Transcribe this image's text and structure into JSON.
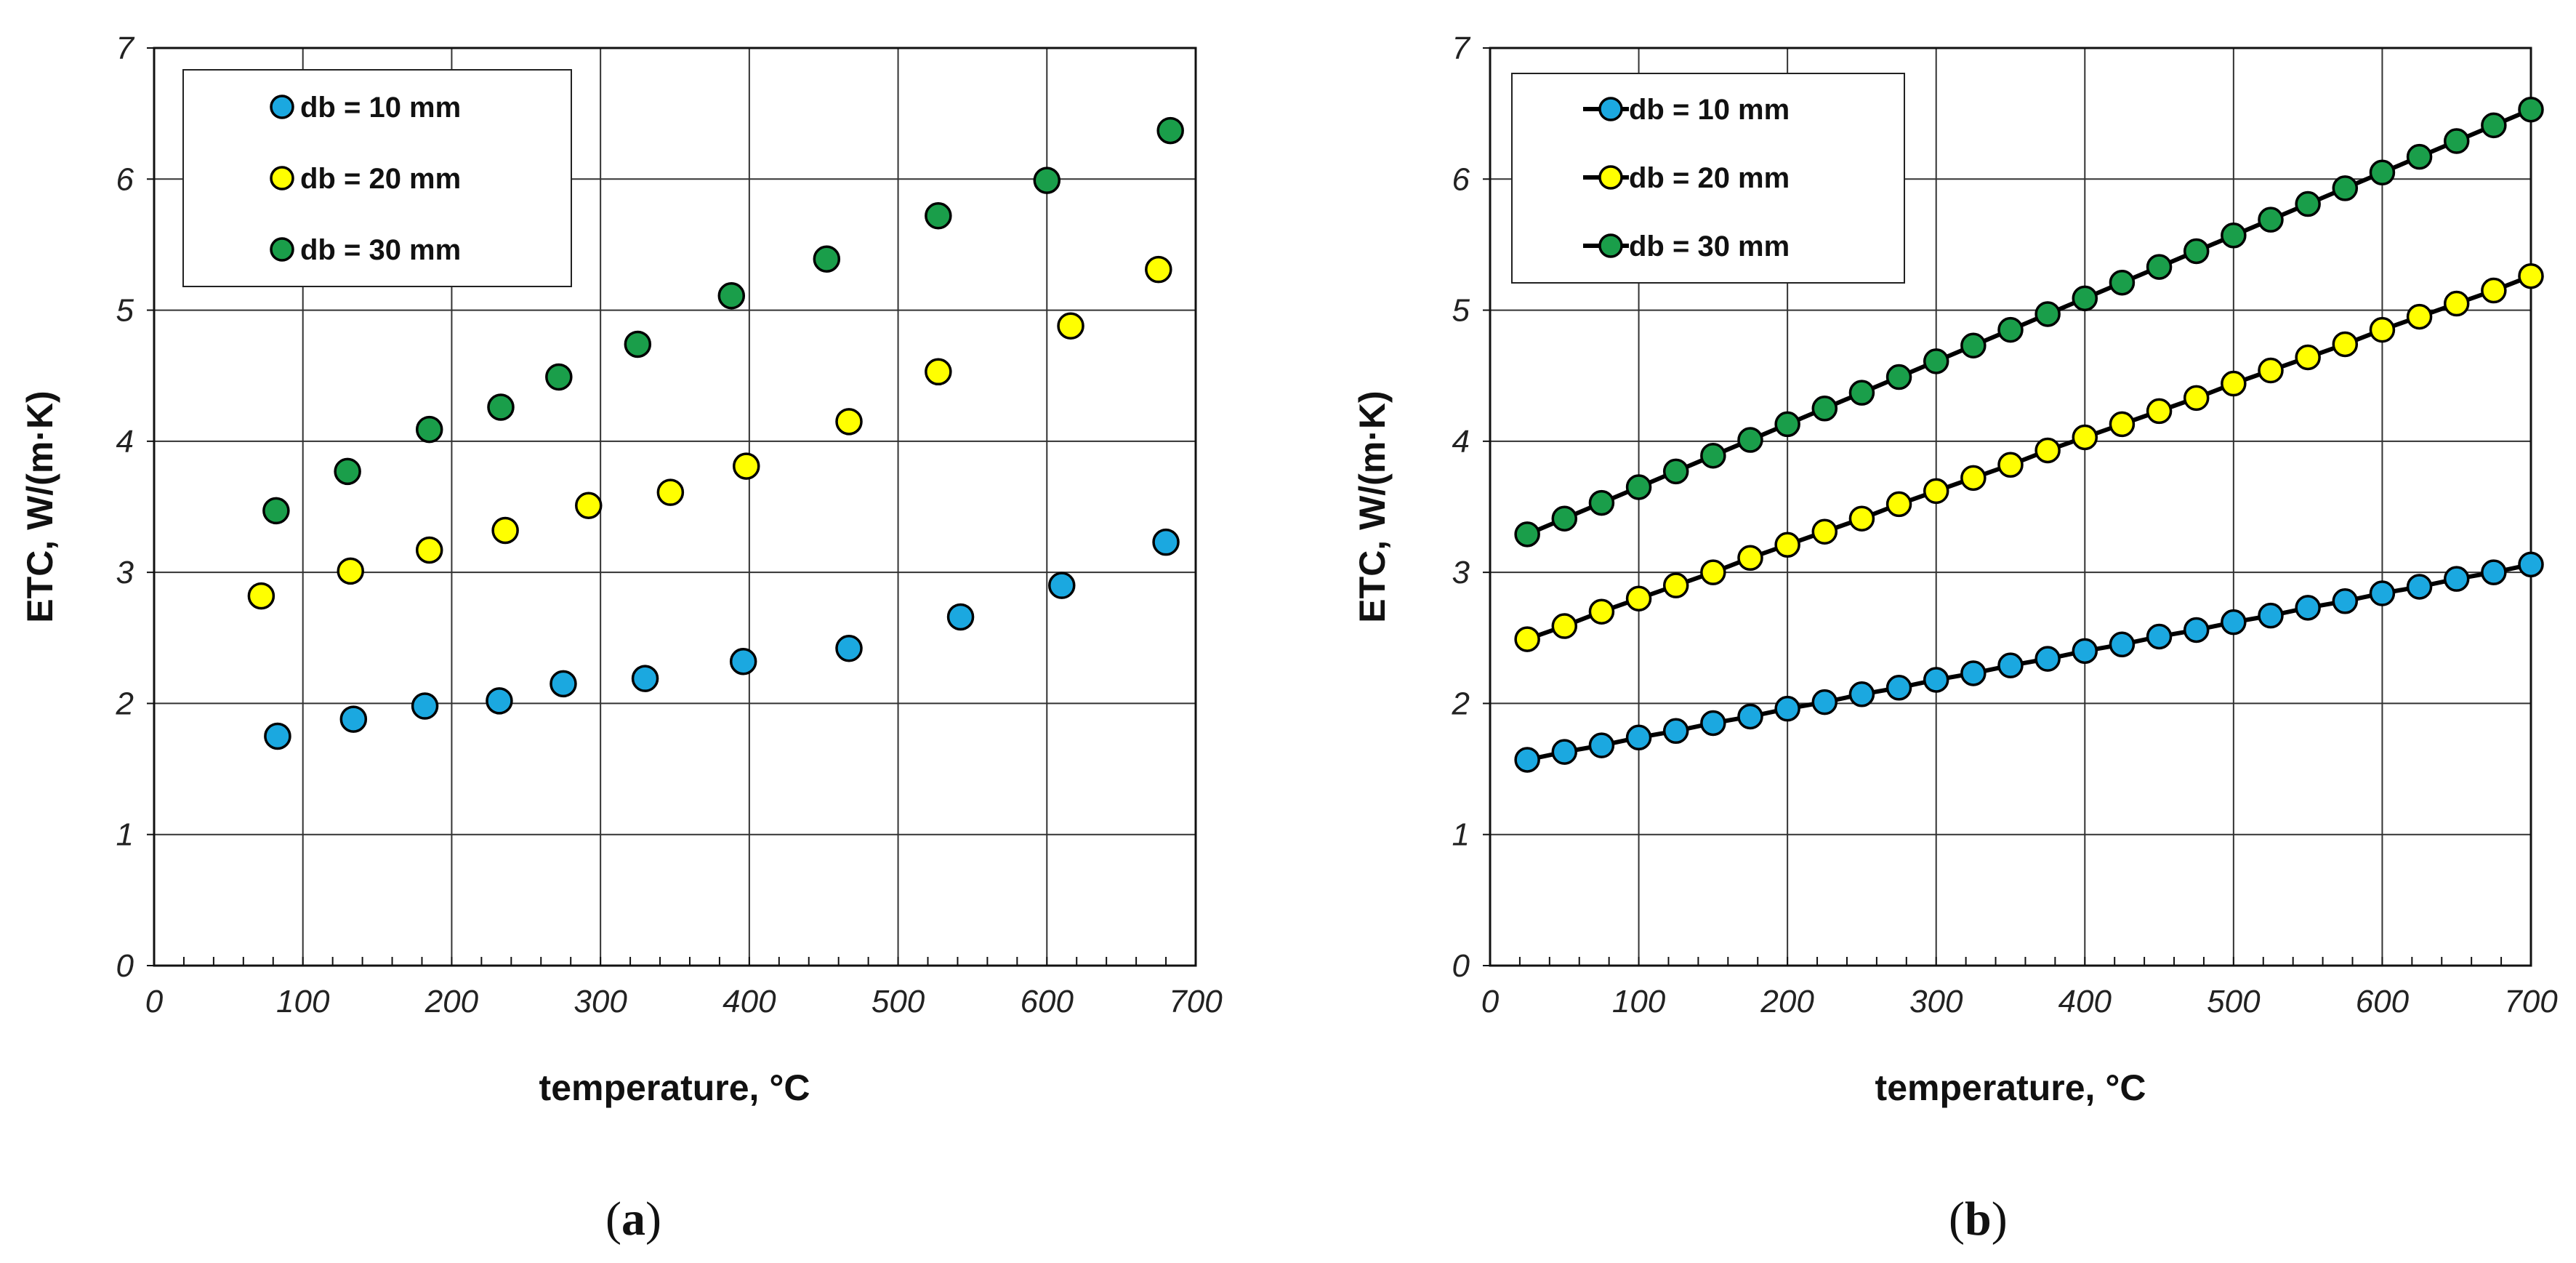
{
  "chart_data": [
    {
      "type": "scatter",
      "panel_label": "(a)",
      "panel_letter": "a",
      "xlabel": "temperature, °C",
      "ylabel": "ETC,   W/(m·K)",
      "xlim": [
        0,
        700
      ],
      "ylim": [
        0,
        7
      ],
      "x_ticks": [
        "0",
        "100",
        "200",
        "300",
        "400",
        "500",
        "600",
        "700"
      ],
      "y_ticks": [
        "0",
        "1",
        "2",
        "3",
        "4",
        "5",
        "6",
        "7"
      ],
      "grid": true,
      "legend_position": "top-left",
      "series": [
        {
          "name": "db = 10 mm",
          "color": "#1ba8e0",
          "x": [
            83,
            134,
            182,
            232,
            275,
            330,
            396,
            467,
            542,
            610,
            680
          ],
          "y": [
            1.75,
            1.88,
            1.98,
            2.02,
            2.15,
            2.19,
            2.32,
            2.42,
            2.66,
            2.9,
            3.23
          ]
        },
        {
          "name": "db = 20 mm",
          "color": "#ffff00",
          "x": [
            72,
            132,
            185,
            236,
            292,
            347,
            398,
            467,
            527,
            616,
            675
          ],
          "y": [
            2.82,
            3.01,
            3.17,
            3.32,
            3.51,
            3.61,
            3.81,
            4.15,
            4.53,
            4.88,
            5.31
          ]
        },
        {
          "name": "db = 30 mm",
          "color": "#1a9e4a",
          "x": [
            82,
            130,
            185,
            233,
            272,
            325,
            388,
            452,
            527,
            600,
            683
          ],
          "y": [
            3.47,
            3.77,
            4.09,
            4.26,
            4.49,
            4.74,
            5.11,
            5.39,
            5.72,
            5.99,
            6.37
          ]
        }
      ]
    },
    {
      "type": "line",
      "panel_label": "(b)",
      "panel_letter": "b",
      "xlabel": "temperature, °C",
      "ylabel": "ETC,   W/(m·K)",
      "xlim": [
        0,
        700
      ],
      "ylim": [
        0,
        7
      ],
      "x_ticks": [
        "0",
        "100",
        "200",
        "300",
        "400",
        "500",
        "600",
        "700"
      ],
      "y_ticks": [
        "0",
        "1",
        "2",
        "3",
        "4",
        "5",
        "6",
        "7"
      ],
      "grid": true,
      "legend_position": "top-left",
      "series": [
        {
          "name": "db = 10 mm",
          "color": "#1ba8e0",
          "x": [
            25,
            50,
            75,
            100,
            125,
            150,
            175,
            200,
            225,
            250,
            275,
            300,
            325,
            350,
            375,
            400,
            425,
            450,
            475,
            500,
            525,
            550,
            575,
            600,
            625,
            650,
            675,
            700
          ],
          "y": [
            1.57,
            1.63,
            1.68,
            1.74,
            1.79,
            1.85,
            1.9,
            1.96,
            2.01,
            2.07,
            2.12,
            2.18,
            2.23,
            2.29,
            2.34,
            2.4,
            2.45,
            2.51,
            2.56,
            2.62,
            2.67,
            2.73,
            2.78,
            2.84,
            2.89,
            2.95,
            3.0,
            3.06
          ]
        },
        {
          "name": "db = 20 mm",
          "color": "#ffff00",
          "x": [
            25,
            50,
            75,
            100,
            125,
            150,
            175,
            200,
            225,
            250,
            275,
            300,
            325,
            350,
            375,
            400,
            425,
            450,
            475,
            500,
            525,
            550,
            575,
            600,
            625,
            650,
            675,
            700
          ],
          "y": [
            2.49,
            2.59,
            2.7,
            2.8,
            2.9,
            3.0,
            3.11,
            3.21,
            3.31,
            3.41,
            3.52,
            3.62,
            3.72,
            3.82,
            3.93,
            4.03,
            4.13,
            4.23,
            4.33,
            4.44,
            4.54,
            4.64,
            4.74,
            4.85,
            4.95,
            5.05,
            5.15,
            5.26
          ]
        },
        {
          "name": "db = 30 mm",
          "color": "#1a9e4a",
          "x": [
            25,
            50,
            75,
            100,
            125,
            150,
            175,
            200,
            225,
            250,
            275,
            300,
            325,
            350,
            375,
            400,
            425,
            450,
            475,
            500,
            525,
            550,
            575,
            600,
            625,
            650,
            675,
            700
          ],
          "y": [
            3.29,
            3.41,
            3.53,
            3.65,
            3.77,
            3.89,
            4.01,
            4.13,
            4.25,
            4.37,
            4.49,
            4.61,
            4.73,
            4.85,
            4.97,
            5.09,
            5.21,
            5.33,
            5.45,
            5.57,
            5.69,
            5.81,
            5.93,
            6.05,
            6.17,
            6.29,
            6.41,
            6.53
          ]
        }
      ]
    }
  ]
}
